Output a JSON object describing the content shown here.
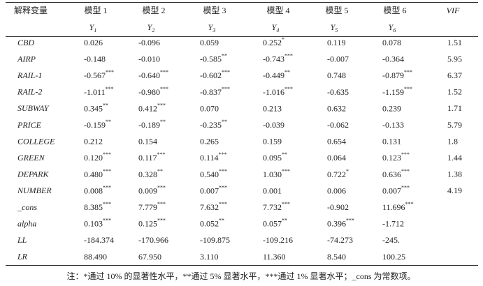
{
  "table": {
    "header": [
      "解释变量",
      "模型 1",
      "模型 2",
      "模型 3",
      "模型 4",
      "模型 5",
      "模型 6",
      "VIF"
    ],
    "dependent": [
      {
        "base": "Y",
        "sub": "1"
      },
      {
        "base": "Y",
        "sub": "2"
      },
      {
        "base": "Y",
        "sub": "3"
      },
      {
        "base": "Y",
        "sub": "4"
      },
      {
        "base": "Y",
        "sub": "5"
      },
      {
        "base": "Y",
        "sub": "6"
      }
    ],
    "rows": [
      {
        "name": "CBD",
        "cells": [
          {
            "v": "0.026"
          },
          {
            "v": "-0.096"
          },
          {
            "v": "0.059"
          },
          {
            "v": "0.252",
            "sig": "*"
          },
          {
            "v": "0.119"
          },
          {
            "v": "0.078"
          }
        ],
        "vif": "1.51"
      },
      {
        "name": "AIRP",
        "cells": [
          {
            "v": "-0.148"
          },
          {
            "v": "-0.010"
          },
          {
            "v": "-0.585",
            "sig": "**"
          },
          {
            "v": "-0.743",
            "sig": "***"
          },
          {
            "v": "-0.007"
          },
          {
            "v": "-0.364"
          }
        ],
        "vif": "5.95"
      },
      {
        "name": "RAIL-1",
        "cells": [
          {
            "v": "-0.567",
            "sig": "***"
          },
          {
            "v": "-0.640",
            "sig": "***"
          },
          {
            "v": "-0.602",
            "sig": "***"
          },
          {
            "v": "-0.449",
            "sig": "**"
          },
          {
            "v": "0.748"
          },
          {
            "v": "-0.879",
            "sig": "***"
          }
        ],
        "vif": "6.37"
      },
      {
        "name": "RAIL-2",
        "cells": [
          {
            "v": "-1.011",
            "sig": "***"
          },
          {
            "v": "-0.980",
            "sig": "***"
          },
          {
            "v": "-0.837",
            "sig": "***"
          },
          {
            "v": "-1.016",
            "sig": "***"
          },
          {
            "v": "-0.635"
          },
          {
            "v": "-1.159",
            "sig": "***"
          }
        ],
        "vif": "1.52"
      },
      {
        "name": "SUBWAY",
        "cells": [
          {
            "v": "0.345",
            "sig": "**"
          },
          {
            "v": "0.412",
            "sig": "***"
          },
          {
            "v": "0.070"
          },
          {
            "v": "0.213"
          },
          {
            "v": "0.632"
          },
          {
            "v": "0.239"
          }
        ],
        "vif": "1.71"
      },
      {
        "name": "PRICE",
        "cells": [
          {
            "v": "-0.159",
            "sig": "**"
          },
          {
            "v": "-0.189",
            "sig": "**"
          },
          {
            "v": "-0.235",
            "sig": "**"
          },
          {
            "v": "-0.039"
          },
          {
            "v": "-0.062"
          },
          {
            "v": "-0.133"
          }
        ],
        "vif": "5.79"
      },
      {
        "name": "COLLEGE",
        "cells": [
          {
            "v": "0.212"
          },
          {
            "v": "0.154"
          },
          {
            "v": "0.265"
          },
          {
            "v": "0.159"
          },
          {
            "v": "0.654"
          },
          {
            "v": "0.131"
          }
        ],
        "vif": "1.8"
      },
      {
        "name": "GREEN",
        "cells": [
          {
            "v": "0.120",
            "sig": "***"
          },
          {
            "v": "0.117",
            "sig": "***"
          },
          {
            "v": "0.114",
            "sig": "***"
          },
          {
            "v": "0.095",
            "sig": "**"
          },
          {
            "v": "0.064"
          },
          {
            "v": "0.123",
            "sig": "***"
          }
        ],
        "vif": "1.44"
      },
      {
        "name": "DEPARK",
        "cells": [
          {
            "v": "0.480",
            "sig": "***"
          },
          {
            "v": "0.328",
            "sig": "**"
          },
          {
            "v": "0.540",
            "sig": "***"
          },
          {
            "v": "1.030",
            "sig": "***"
          },
          {
            "v": "0.722",
            "sig": "*"
          },
          {
            "v": "0.636",
            "sig": "***"
          }
        ],
        "vif": "1.38"
      },
      {
        "name": "NUMBER",
        "cells": [
          {
            "v": "0.008",
            "sig": "***"
          },
          {
            "v": "0.009",
            "sig": "***"
          },
          {
            "v": "0.007",
            "sig": "***"
          },
          {
            "v": "0.001"
          },
          {
            "v": "0.006"
          },
          {
            "v": "0.007",
            "sig": "***"
          }
        ],
        "vif": "4.19"
      },
      {
        "name": "_cons",
        "cells": [
          {
            "v": "8.385",
            "sig": "***"
          },
          {
            "v": "7.779",
            "sig": "***"
          },
          {
            "v": "7.632",
            "sig": "***"
          },
          {
            "v": "7.732",
            "sig": "***"
          },
          {
            "v": "-0.902"
          },
          {
            "v": "11.696",
            "sig": "***"
          }
        ]
      },
      {
        "name": "alpha",
        "cells": [
          {
            "v": "0.103",
            "sig": "***"
          },
          {
            "v": "0.125",
            "sig": "***"
          },
          {
            "v": "0.052",
            "sig": "**"
          },
          {
            "v": "0.057",
            "sig": "**"
          },
          {
            "v": "0.396",
            "sig": "***"
          },
          {
            "v": "-1.712"
          }
        ]
      },
      {
        "name": "LL",
        "cells": [
          {
            "v": "-184.374"
          },
          {
            "v": "-170.966"
          },
          {
            "v": "-109.875"
          },
          {
            "v": "-109.216"
          },
          {
            "v": "-74.273"
          },
          {
            "v": "-245."
          }
        ]
      },
      {
        "name": "LR",
        "cells": [
          {
            "v": "88.490"
          },
          {
            "v": "67.950"
          },
          {
            "v": "3.110"
          },
          {
            "v": "11.360"
          },
          {
            "v": "8.540"
          },
          {
            "v": "100.25"
          }
        ]
      }
    ],
    "note": "注：*通过 10% 的显著性水平，**通过 5% 显著水平，***通过 1% 显著水平；_cons 为常数项。"
  }
}
